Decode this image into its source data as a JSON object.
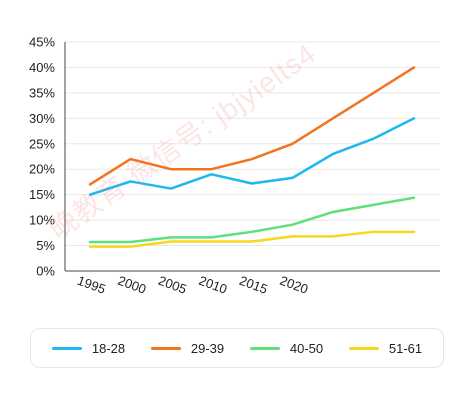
{
  "chart_data": {
    "type": "line",
    "title": "",
    "xlabel": "",
    "ylabel": "",
    "x_ticks": [
      "1995",
      "2000",
      "2005",
      "2010",
      "2015",
      "2020"
    ],
    "x": [
      "1995",
      "2000",
      "2005",
      "2010",
      "2015",
      "2020",
      "2025",
      "2030",
      "2035"
    ],
    "ylim": [
      0,
      45
    ],
    "y_ticks": [
      "0%",
      "5%",
      "10%",
      "15%",
      "20%",
      "25%",
      "30%",
      "35%",
      "40%",
      "45%"
    ],
    "grid": "horizontal",
    "legend_position": "bottom",
    "series": [
      {
        "name": "18-28",
        "color": "#1FB8EE",
        "values": [
          15,
          17.6,
          16.2,
          19,
          17.2,
          18.3,
          23,
          26,
          30
        ]
      },
      {
        "name": "29-39",
        "color": "#F27320",
        "values": [
          17,
          22,
          20,
          20,
          22,
          25,
          30,
          35,
          40
        ]
      },
      {
        "name": "40-50",
        "color": "#5EE07A",
        "values": [
          5.7,
          5.7,
          6.6,
          6.6,
          7.7,
          9.1,
          11.6,
          13,
          14.4
        ]
      },
      {
        "name": "51-61",
        "color": "#F7D81D",
        "values": [
          4.8,
          4.8,
          5.8,
          5.8,
          5.8,
          6.8,
          6.8,
          7.7,
          7.7
        ]
      }
    ]
  },
  "watermark": "晚教育 微信号: jbjyielts4"
}
